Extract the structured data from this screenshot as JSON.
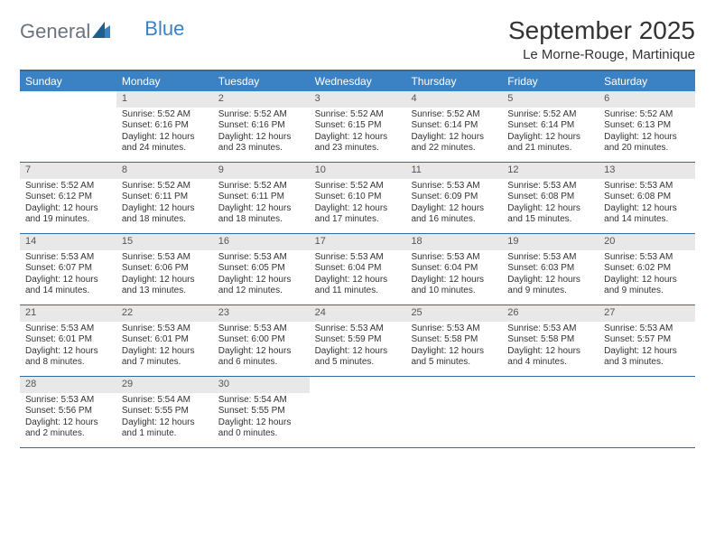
{
  "logo": {
    "text1": "General",
    "text2": "Blue"
  },
  "title": "September 2025",
  "location": "Le Morne-Rouge, Martinique",
  "colors": {
    "header_bar": "#3b82c4",
    "border": "#2b6ca3",
    "daynum_bg": "#e8e8e8",
    "logo_gray": "#6b7280",
    "logo_blue": "#3b82c4",
    "text": "#333333",
    "white": "#ffffff"
  },
  "dow": [
    "Sunday",
    "Monday",
    "Tuesday",
    "Wednesday",
    "Thursday",
    "Friday",
    "Saturday"
  ],
  "weeks": [
    [
      {
        "n": "",
        "sr": "",
        "ss": "",
        "dl": ""
      },
      {
        "n": "1",
        "sr": "Sunrise: 5:52 AM",
        "ss": "Sunset: 6:16 PM",
        "dl": "Daylight: 12 hours and 24 minutes."
      },
      {
        "n": "2",
        "sr": "Sunrise: 5:52 AM",
        "ss": "Sunset: 6:16 PM",
        "dl": "Daylight: 12 hours and 23 minutes."
      },
      {
        "n": "3",
        "sr": "Sunrise: 5:52 AM",
        "ss": "Sunset: 6:15 PM",
        "dl": "Daylight: 12 hours and 23 minutes."
      },
      {
        "n": "4",
        "sr": "Sunrise: 5:52 AM",
        "ss": "Sunset: 6:14 PM",
        "dl": "Daylight: 12 hours and 22 minutes."
      },
      {
        "n": "5",
        "sr": "Sunrise: 5:52 AM",
        "ss": "Sunset: 6:14 PM",
        "dl": "Daylight: 12 hours and 21 minutes."
      },
      {
        "n": "6",
        "sr": "Sunrise: 5:52 AM",
        "ss": "Sunset: 6:13 PM",
        "dl": "Daylight: 12 hours and 20 minutes."
      }
    ],
    [
      {
        "n": "7",
        "sr": "Sunrise: 5:52 AM",
        "ss": "Sunset: 6:12 PM",
        "dl": "Daylight: 12 hours and 19 minutes."
      },
      {
        "n": "8",
        "sr": "Sunrise: 5:52 AM",
        "ss": "Sunset: 6:11 PM",
        "dl": "Daylight: 12 hours and 18 minutes."
      },
      {
        "n": "9",
        "sr": "Sunrise: 5:52 AM",
        "ss": "Sunset: 6:11 PM",
        "dl": "Daylight: 12 hours and 18 minutes."
      },
      {
        "n": "10",
        "sr": "Sunrise: 5:52 AM",
        "ss": "Sunset: 6:10 PM",
        "dl": "Daylight: 12 hours and 17 minutes."
      },
      {
        "n": "11",
        "sr": "Sunrise: 5:53 AM",
        "ss": "Sunset: 6:09 PM",
        "dl": "Daylight: 12 hours and 16 minutes."
      },
      {
        "n": "12",
        "sr": "Sunrise: 5:53 AM",
        "ss": "Sunset: 6:08 PM",
        "dl": "Daylight: 12 hours and 15 minutes."
      },
      {
        "n": "13",
        "sr": "Sunrise: 5:53 AM",
        "ss": "Sunset: 6:08 PM",
        "dl": "Daylight: 12 hours and 14 minutes."
      }
    ],
    [
      {
        "n": "14",
        "sr": "Sunrise: 5:53 AM",
        "ss": "Sunset: 6:07 PM",
        "dl": "Daylight: 12 hours and 14 minutes."
      },
      {
        "n": "15",
        "sr": "Sunrise: 5:53 AM",
        "ss": "Sunset: 6:06 PM",
        "dl": "Daylight: 12 hours and 13 minutes."
      },
      {
        "n": "16",
        "sr": "Sunrise: 5:53 AM",
        "ss": "Sunset: 6:05 PM",
        "dl": "Daylight: 12 hours and 12 minutes."
      },
      {
        "n": "17",
        "sr": "Sunrise: 5:53 AM",
        "ss": "Sunset: 6:04 PM",
        "dl": "Daylight: 12 hours and 11 minutes."
      },
      {
        "n": "18",
        "sr": "Sunrise: 5:53 AM",
        "ss": "Sunset: 6:04 PM",
        "dl": "Daylight: 12 hours and 10 minutes."
      },
      {
        "n": "19",
        "sr": "Sunrise: 5:53 AM",
        "ss": "Sunset: 6:03 PM",
        "dl": "Daylight: 12 hours and 9 minutes."
      },
      {
        "n": "20",
        "sr": "Sunrise: 5:53 AM",
        "ss": "Sunset: 6:02 PM",
        "dl": "Daylight: 12 hours and 9 minutes."
      }
    ],
    [
      {
        "n": "21",
        "sr": "Sunrise: 5:53 AM",
        "ss": "Sunset: 6:01 PM",
        "dl": "Daylight: 12 hours and 8 minutes."
      },
      {
        "n": "22",
        "sr": "Sunrise: 5:53 AM",
        "ss": "Sunset: 6:01 PM",
        "dl": "Daylight: 12 hours and 7 minutes."
      },
      {
        "n": "23",
        "sr": "Sunrise: 5:53 AM",
        "ss": "Sunset: 6:00 PM",
        "dl": "Daylight: 12 hours and 6 minutes."
      },
      {
        "n": "24",
        "sr": "Sunrise: 5:53 AM",
        "ss": "Sunset: 5:59 PM",
        "dl": "Daylight: 12 hours and 5 minutes."
      },
      {
        "n": "25",
        "sr": "Sunrise: 5:53 AM",
        "ss": "Sunset: 5:58 PM",
        "dl": "Daylight: 12 hours and 5 minutes."
      },
      {
        "n": "26",
        "sr": "Sunrise: 5:53 AM",
        "ss": "Sunset: 5:58 PM",
        "dl": "Daylight: 12 hours and 4 minutes."
      },
      {
        "n": "27",
        "sr": "Sunrise: 5:53 AM",
        "ss": "Sunset: 5:57 PM",
        "dl": "Daylight: 12 hours and 3 minutes."
      }
    ],
    [
      {
        "n": "28",
        "sr": "Sunrise: 5:53 AM",
        "ss": "Sunset: 5:56 PM",
        "dl": "Daylight: 12 hours and 2 minutes."
      },
      {
        "n": "29",
        "sr": "Sunrise: 5:54 AM",
        "ss": "Sunset: 5:55 PM",
        "dl": "Daylight: 12 hours and 1 minute."
      },
      {
        "n": "30",
        "sr": "Sunrise: 5:54 AM",
        "ss": "Sunset: 5:55 PM",
        "dl": "Daylight: 12 hours and 0 minutes."
      },
      {
        "n": "",
        "sr": "",
        "ss": "",
        "dl": ""
      },
      {
        "n": "",
        "sr": "",
        "ss": "",
        "dl": ""
      },
      {
        "n": "",
        "sr": "",
        "ss": "",
        "dl": ""
      },
      {
        "n": "",
        "sr": "",
        "ss": "",
        "dl": ""
      }
    ]
  ]
}
